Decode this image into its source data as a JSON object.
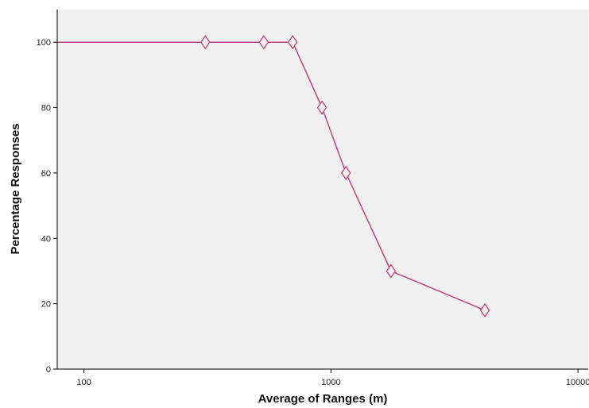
{
  "chart_data": {
    "type": "line",
    "xlabel": "Average of Ranges (m)",
    "ylabel": "Percentage Responses",
    "x_scale": "log",
    "xlim": [
      78,
      11000
    ],
    "ylim": [
      0,
      110
    ],
    "x_ticks": [
      100,
      1000,
      10000
    ],
    "x_tick_labels": [
      "100",
      "1000",
      "10000"
    ],
    "y_ticks": [
      0,
      20,
      40,
      60,
      80,
      100
    ],
    "y_tick_labels": [
      "0",
      "20",
      "40",
      "60",
      "80",
      "100"
    ],
    "grid": false,
    "background_color": "#f0f0f0",
    "series": [
      {
        "color": "#c0447f",
        "marker": "diamond",
        "line_starts_at_axis": true,
        "points": [
          {
            "x": 310,
            "y": 100
          },
          {
            "x": 535,
            "y": 100
          },
          {
            "x": 700,
            "y": 100
          },
          {
            "x": 920,
            "y": 80
          },
          {
            "x": 1150,
            "y": 60
          },
          {
            "x": 1750,
            "y": 30
          },
          {
            "x": 4200,
            "y": 18
          }
        ]
      }
    ]
  }
}
